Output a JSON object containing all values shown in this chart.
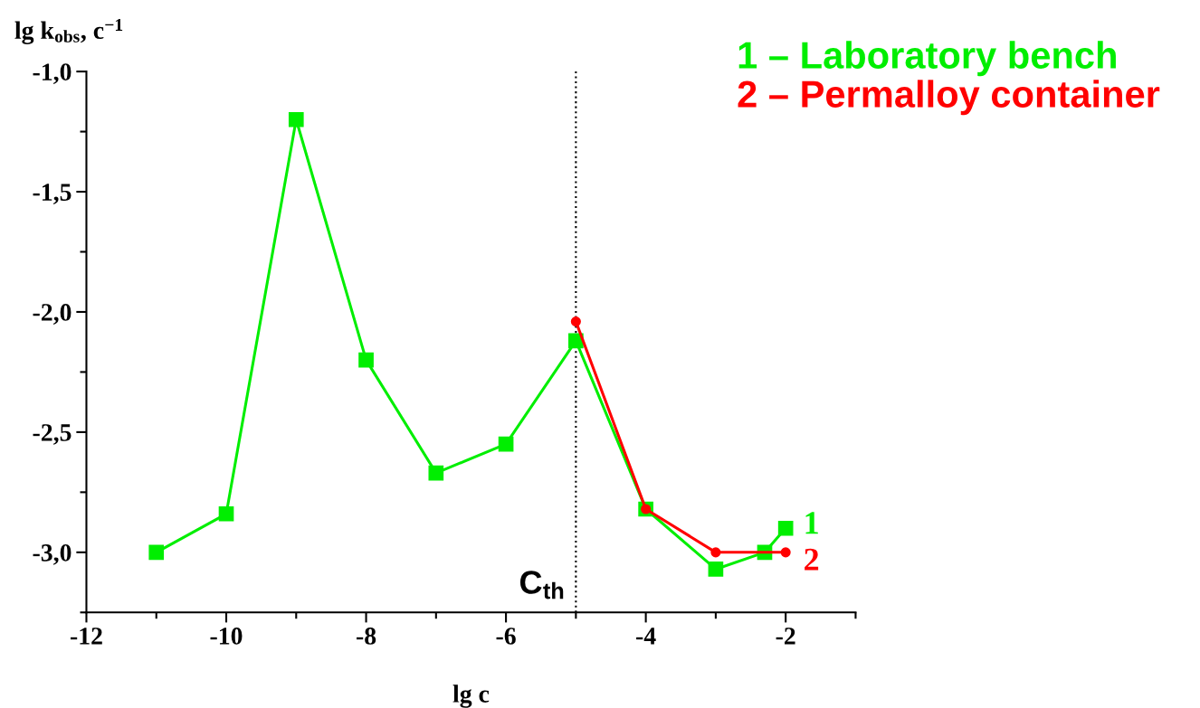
{
  "chart_data": {
    "type": "line",
    "xlabel": "lg c",
    "ylabel": "lg k$_{obs}$, c$^{−1}$",
    "xlim": [
      -12,
      -1
    ],
    "xticks": [
      -12,
      -10,
      -8,
      -6,
      -4,
      -2
    ],
    "ylim": [
      -3.25,
      -1.0
    ],
    "yticks": [
      {
        "value": -3.0,
        "label": "-3,0"
      },
      {
        "value": -2.5,
        "label": "-2,5"
      },
      {
        "value": -2.0,
        "label": "-2,0"
      },
      {
        "value": -1.5,
        "label": "-1,5"
      },
      {
        "value": -1.0,
        "label": "-1,0"
      }
    ],
    "grid": false,
    "legend": "top right",
    "series": [
      {
        "name": "1 – Laboratory bench",
        "color": "#00ee00",
        "marker": "square",
        "x": [
          -11,
          -10,
          -9,
          -8,
          -7,
          -6,
          -5,
          -4,
          -3,
          -2.3,
          -2
        ],
        "values": [
          -3.0,
          -2.84,
          -1.2,
          -2.2,
          -2.67,
          -2.55,
          -2.12,
          -2.82,
          -3.07,
          -3.0,
          -2.9
        ]
      },
      {
        "name": "2 – Permalloy container",
        "color": "#ff0000",
        "marker": "circle",
        "x": [
          -5,
          -4,
          -3,
          -2
        ],
        "values": [
          -2.04,
          -2.82,
          -3.0,
          -3.0
        ]
      }
    ],
    "ref_lines": [
      {
        "axis": "x",
        "value": -5,
        "label": "C$_{th}$",
        "color": "#000000",
        "line_style": "dotted"
      }
    ],
    "annotations": [
      "1",
      "2"
    ]
  }
}
